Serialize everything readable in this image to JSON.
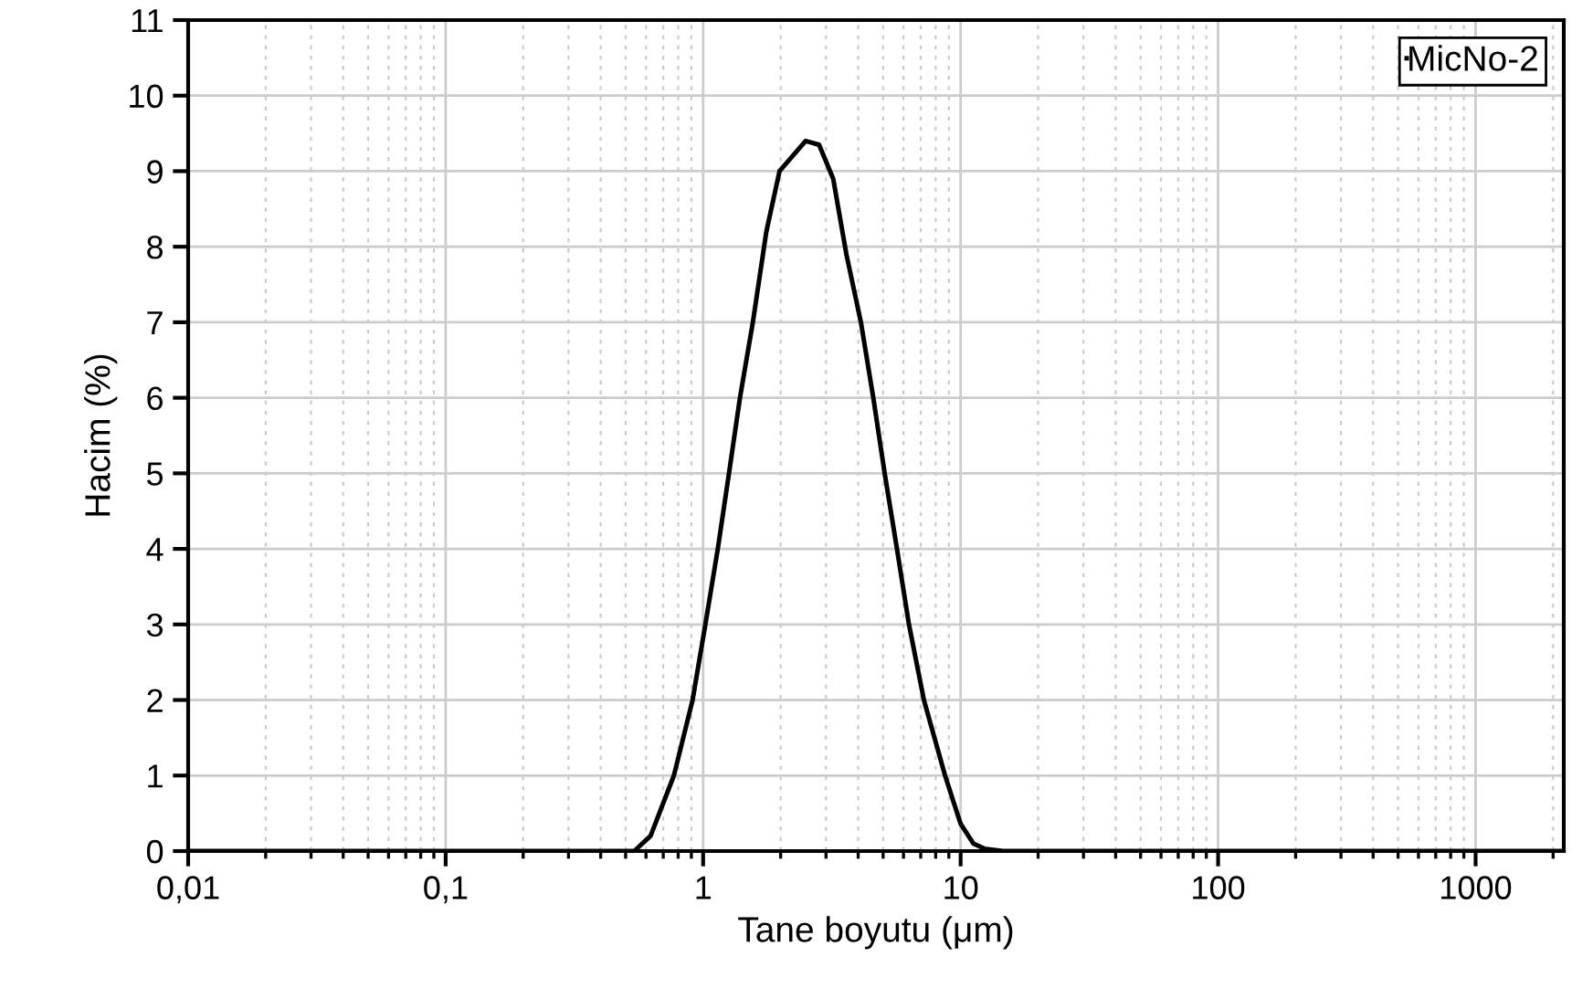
{
  "chart_data": {
    "type": "line",
    "xlabel": "Tane boyutu (μm)",
    "ylabel": "Hacim (%)",
    "log": "x",
    "xlim": [
      0.01,
      2200
    ],
    "xticks": [
      {
        "value": 0.01,
        "label": "0,01"
      },
      {
        "value": 0.1,
        "label": "0,1"
      },
      1,
      10,
      100,
      1000
    ],
    "ylim": [
      0,
      11
    ],
    "yticks": [
      0,
      1,
      2,
      3,
      4,
      5,
      6,
      7,
      8,
      9,
      10,
      11
    ],
    "grid": true,
    "legend": "top right",
    "line_style": "solid",
    "marker": "none",
    "series": [
      {
        "name": "MicNo-2",
        "color": "#000000",
        "x": [
          0.01,
          0.54,
          0.625,
          0.77,
          0.91,
          1.02,
          1.14,
          1.26,
          1.39,
          1.56,
          1.76,
          1.98,
          2.5,
          2.82,
          3.2,
          3.6,
          4.1,
          4.58,
          5.07,
          5.66,
          6.3,
          7.2,
          8.7,
          10,
          11.2,
          12.4,
          14.6,
          2200
        ],
        "values": [
          0,
          0,
          0.2,
          1,
          2,
          3,
          4,
          5,
          6,
          7,
          8.2,
          9.0,
          9.4,
          9.35,
          8.9,
          7.9,
          7,
          6,
          5,
          4,
          3,
          2,
          1,
          0.36,
          0.1,
          0.03,
          0,
          0
        ]
      }
    ]
  }
}
